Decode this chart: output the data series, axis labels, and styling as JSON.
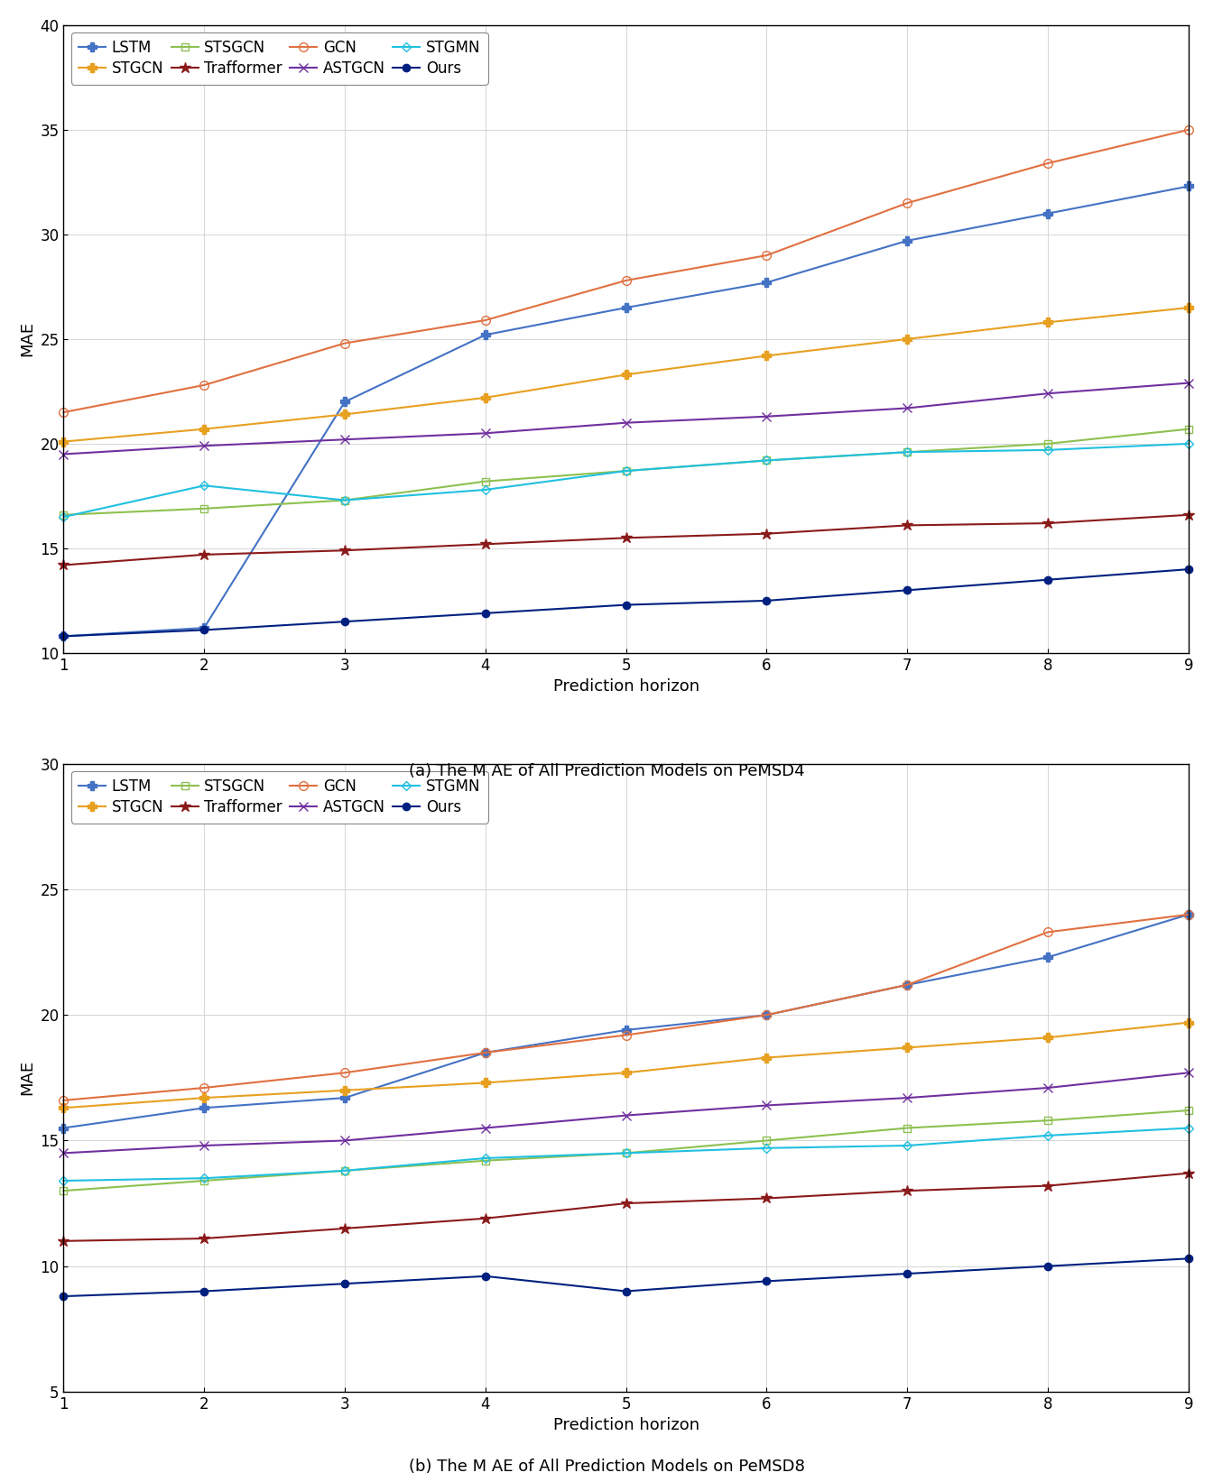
{
  "horizons": [
    1,
    2,
    3,
    4,
    5,
    6,
    7,
    8,
    9
  ],
  "chart_a": {
    "title": "(a) The M AE of All Prediction Models on PeMSD4",
    "ylim": [
      10,
      40
    ],
    "yticks": [
      10,
      15,
      20,
      25,
      30,
      35,
      40
    ],
    "series": [
      {
        "label": "LSTM",
        "color": "#4472C4",
        "marker": "P",
        "markerfacecolor": "#4472C4",
        "markersize": 7,
        "linewidth": 1.5,
        "data": [
          10.8,
          11.2,
          22.0,
          25.2,
          26.5,
          27.7,
          29.7,
          31.0,
          32.3
        ]
      },
      {
        "label": "STGCN",
        "color": "#E8A020",
        "marker": "P",
        "markerfacecolor": "#E8A020",
        "markersize": 7,
        "linewidth": 1.5,
        "data": [
          20.1,
          20.7,
          21.4,
          22.2,
          23.3,
          24.2,
          25.0,
          25.8,
          26.5
        ]
      },
      {
        "label": "STSGCN",
        "color": "#8DC050",
        "marker": "s",
        "markerfacecolor": "none",
        "markersize": 6,
        "linewidth": 1.5,
        "data": [
          16.6,
          16.9,
          17.3,
          18.2,
          18.7,
          19.2,
          19.6,
          20.0,
          20.7
        ]
      },
      {
        "label": "Trafformer",
        "color": "#8B1A1A",
        "marker": "*",
        "markerfacecolor": "#8B1A1A",
        "markersize": 9,
        "linewidth": 1.5,
        "data": [
          14.2,
          14.7,
          14.9,
          15.2,
          15.5,
          15.7,
          16.1,
          16.2,
          16.6
        ]
      },
      {
        "label": "GCN",
        "color": "#E07040",
        "marker": "o",
        "markerfacecolor": "none",
        "markersize": 7,
        "linewidth": 1.5,
        "data": [
          21.5,
          22.8,
          24.8,
          25.9,
          27.8,
          29.0,
          31.5,
          33.4,
          35.0
        ]
      },
      {
        "label": "ASTGCN",
        "color": "#7030A0",
        "marker": "x",
        "markerfacecolor": "#7030A0",
        "markersize": 7,
        "linewidth": 1.5,
        "data": [
          19.5,
          19.9,
          20.2,
          20.5,
          21.0,
          21.3,
          21.7,
          22.4,
          22.9
        ]
      },
      {
        "label": "STGMN",
        "color": "#20C0E0",
        "marker": "D",
        "markerfacecolor": "none",
        "markersize": 5,
        "linewidth": 1.5,
        "data": [
          16.5,
          18.0,
          17.3,
          17.8,
          18.7,
          19.2,
          19.6,
          19.7,
          20.0
        ]
      },
      {
        "label": "Ours",
        "color": "#002080",
        "marker": "o",
        "markerfacecolor": "#002080",
        "markersize": 6,
        "linewidth": 1.5,
        "data": [
          10.8,
          11.1,
          11.5,
          11.9,
          12.3,
          12.5,
          13.0,
          13.5,
          14.0
        ]
      }
    ]
  },
  "chart_b": {
    "title": "(b) The M AE of All Prediction Models on PeMSD8",
    "ylim": [
      5,
      30
    ],
    "yticks": [
      5,
      10,
      15,
      20,
      25,
      30
    ],
    "series": [
      {
        "label": "LSTM",
        "color": "#4472C4",
        "marker": "P",
        "markerfacecolor": "#4472C4",
        "markersize": 7,
        "linewidth": 1.5,
        "data": [
          15.5,
          16.3,
          16.7,
          18.5,
          19.4,
          20.0,
          21.2,
          22.3,
          24.0
        ]
      },
      {
        "label": "STGCN",
        "color": "#E8A020",
        "marker": "P",
        "markerfacecolor": "#E8A020",
        "markersize": 7,
        "linewidth": 1.5,
        "data": [
          16.3,
          16.7,
          17.0,
          17.3,
          17.7,
          18.3,
          18.7,
          19.1,
          19.7
        ]
      },
      {
        "label": "STSGCN",
        "color": "#8DC050",
        "marker": "s",
        "markerfacecolor": "none",
        "markersize": 6,
        "linewidth": 1.5,
        "data": [
          13.0,
          13.4,
          13.8,
          14.2,
          14.5,
          15.0,
          15.5,
          15.8,
          16.2
        ]
      },
      {
        "label": "Trafformer",
        "color": "#8B1A1A",
        "marker": "*",
        "markerfacecolor": "#8B1A1A",
        "markersize": 9,
        "linewidth": 1.5,
        "data": [
          11.0,
          11.1,
          11.5,
          11.9,
          12.5,
          12.7,
          13.0,
          13.2,
          13.7
        ]
      },
      {
        "label": "GCN",
        "color": "#E07040",
        "marker": "o",
        "markerfacecolor": "none",
        "markersize": 7,
        "linewidth": 1.5,
        "data": [
          16.6,
          17.1,
          17.7,
          18.5,
          19.2,
          20.0,
          21.2,
          23.3,
          24.0
        ]
      },
      {
        "label": "ASTGCN",
        "color": "#7030A0",
        "marker": "x",
        "markerfacecolor": "#7030A0",
        "markersize": 7,
        "linewidth": 1.5,
        "data": [
          14.5,
          14.8,
          15.0,
          15.5,
          16.0,
          16.4,
          16.7,
          17.1,
          17.7
        ]
      },
      {
        "label": "STGMN",
        "color": "#20C0E0",
        "marker": "D",
        "markerfacecolor": "none",
        "markersize": 5,
        "linewidth": 1.5,
        "data": [
          13.4,
          13.5,
          13.8,
          14.3,
          14.5,
          14.7,
          14.8,
          15.2,
          15.5
        ]
      },
      {
        "label": "Ours",
        "color": "#002080",
        "marker": "o",
        "markerfacecolor": "#002080",
        "markersize": 6,
        "linewidth": 1.5,
        "data": [
          8.8,
          9.0,
          9.3,
          9.6,
          9.0,
          9.4,
          9.7,
          10.0,
          10.3
        ]
      }
    ]
  },
  "xlabel": "Prediction horizon",
  "ylabel": "MAE",
  "legend_order": [
    "LSTM",
    "STGCN",
    "STSGCN",
    "Trafformer",
    "GCN",
    "ASTGCN",
    "STGMN",
    "Ours"
  ],
  "background_color": "#ffffff",
  "grid_color": "#d0d0d0",
  "title_fontsize": 13,
  "axis_fontsize": 13,
  "tick_fontsize": 12,
  "legend_fontsize": 12
}
